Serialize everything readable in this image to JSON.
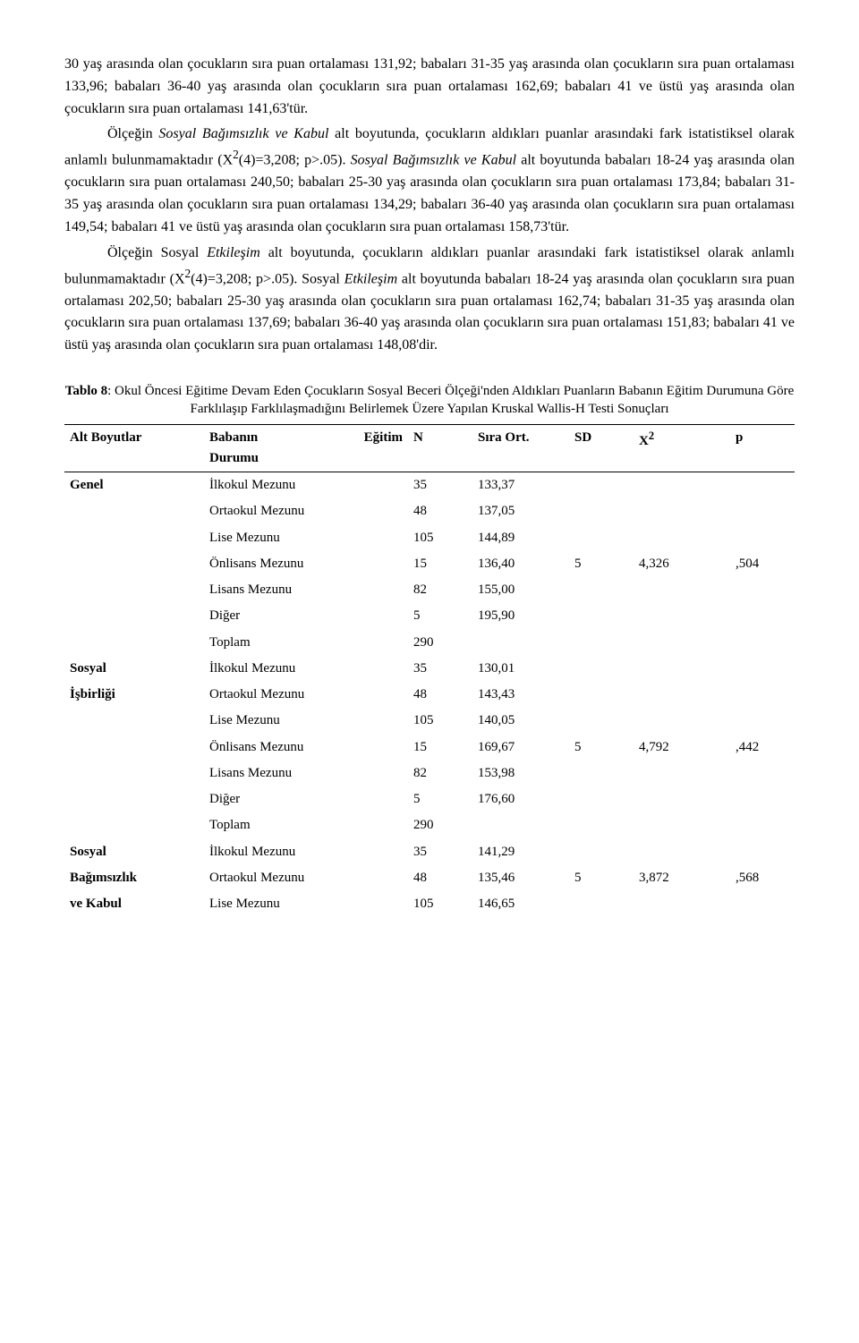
{
  "p1_a": "30 yaş arasında olan çocukların sıra puan ortalaması 131,92; babaları 31-35 yaş arasında olan çocukların sıra puan ortalaması 133,96; babaları 36-40 yaş arasında olan çocukların sıra puan ortalaması 162,69; babaları 41 ve üstü yaş arasında olan çocukların sıra puan ortalaması 141,63'tür.",
  "p2_a": "Ölçeğin ",
  "p2_b": "Sosyal Bağımsızlık ve Kabul",
  "p2_c": " alt boyutunda, çocukların aldıkları puanlar arasındaki fark istatistiksel olarak anlamlı bulunmamaktadır (X",
  "p2_d": "(4)=3,208; p>.05). ",
  "p2_e": "Sosyal Bağımsızlık ve Kabul",
  "p2_f": " alt boyutunda babaları 18-24 yaş arasında olan çocukların sıra puan ortalaması 240,50; babaları 25-30 yaş arasında olan çocukların sıra puan ortalaması 173,84; babaları 31-35 yaş arasında olan çocukların sıra puan ortalaması 134,29; babaları 36-40 yaş arasında olan çocukların sıra puan ortalaması 149,54; babaları 41 ve üstü yaş arasında olan çocukların sıra puan ortalaması 158,73'tür.",
  "p3_a": "Ölçeğin Sosyal ",
  "p3_b": "Etkileşim",
  "p3_c": " alt boyutunda, çocukların aldıkları puanlar arasındaki fark istatistiksel olarak anlamlı bulunmamaktadır (X",
  "p3_d": "(4)=3,208; p>.05). Sosyal ",
  "p3_e": "Etkileşim",
  "p3_f": " alt boyutunda babaları 18-24 yaş arasında olan çocukların sıra puan ortalaması 202,50; babaları 25-30 yaş arasında olan çocukların sıra puan ortalaması 162,74; babaları 31-35 yaş arasında olan çocukların sıra puan ortalaması 137,69; babaları 36-40 yaş arasında olan çocukların sıra puan ortalaması 151,83; babaları 41 ve üstü yaş arasında olan çocukların sıra puan ortalaması 148,08'dir.",
  "sup2": "2",
  "caption_bold": "Tablo 8",
  "caption_rest": ": Okul Öncesi Eğitime Devam Eden Çocukların Sosyal Beceri Ölçeği'nden Aldıkları Puanların Babanın Eğitim Durumuna Göre Farklılaşıp Farklılaşmadığını Belirlemek Üzere Yapılan Kruskal Wallis-H Testi Sonuçları",
  "headers": {
    "alt": "Alt Boyutlar",
    "edu_l1": "Babanın",
    "edu_l2": "Eğitim",
    "edu_l3": "Durumu",
    "n": "N",
    "ort": "Sıra Ort.",
    "sd": "SD",
    "x2": "X",
    "p": "p"
  },
  "edu_labels": {
    "ilkokul": "İlkokul Mezunu",
    "ortaokul": "Ortaokul Mezunu",
    "lise": "Lise Mezunu",
    "onlisans": "Önlisans Mezunu",
    "lisans": "Lisans Mezunu",
    "diger": "Diğer",
    "toplam": "Toplam"
  },
  "n_vals": {
    "ilkokul": "35",
    "ortaokul": "48",
    "lise": "105",
    "onlisans": "15",
    "lisans": "82",
    "diger": "5",
    "toplam": "290"
  },
  "groups": {
    "genel": {
      "label": "Genel",
      "ort": {
        "ilkokul": "133,37",
        "ortaokul": "137,05",
        "lise": "144,89",
        "onlisans": "136,40",
        "lisans": "155,00",
        "diger": "195,90"
      },
      "sd": "5",
      "x2": "4,326",
      "p": ",504"
    },
    "isbirligi": {
      "label_l1": "Sosyal",
      "label_l2": "İşbirliği",
      "ort": {
        "ilkokul": "130,01",
        "ortaokul": "143,43",
        "lise": "140,05",
        "onlisans": "169,67",
        "lisans": "153,98",
        "diger": "176,60"
      },
      "sd": "5",
      "x2": "4,792",
      "p": ",442"
    },
    "bagimsizlik": {
      "label_l1": "Sosyal",
      "label_l2": "Bağımsızlık",
      "label_l3": "ve  Kabul",
      "ort": {
        "ilkokul": "141,29",
        "ortaokul": "135,46",
        "lise": "146,65"
      },
      "sd": "5",
      "x2": "3,872",
      "p": ",568"
    }
  }
}
